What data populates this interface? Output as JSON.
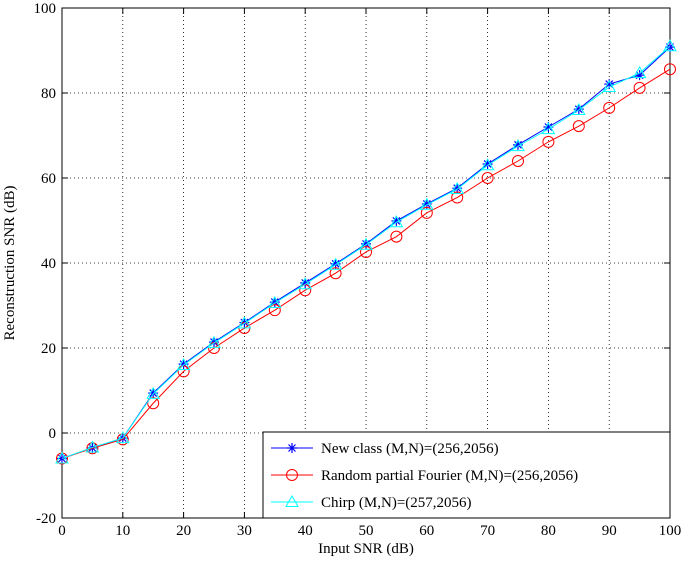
{
  "chart_data": {
    "type": "line",
    "xlabel": "Input SNR (dB)",
    "ylabel": "Reconstruction SNR (dB)",
    "x": [
      0,
      5,
      10,
      15,
      20,
      25,
      30,
      35,
      40,
      45,
      50,
      55,
      60,
      65,
      70,
      75,
      80,
      85,
      90,
      95,
      100
    ],
    "series": [
      {
        "name": "New class (M,N)=(256,2056)",
        "color": "#0000ff",
        "marker": "star",
        "values": [
          -6,
          -3.5,
          -1.2,
          9.4,
          16.2,
          21.4,
          26,
          30.8,
          35.3,
          39.8,
          44.5,
          49.9,
          53.9,
          57.6,
          63.3,
          67.8,
          72,
          76.2,
          82.1,
          84.2,
          90.8
        ]
      },
      {
        "name": "Random partial Fourier (M,N)=(256,2056)",
        "color": "#ff0000",
        "marker": "circle",
        "values": [
          -6,
          -3.6,
          -1.5,
          7,
          14.5,
          20,
          24.7,
          28.9,
          33.6,
          37.6,
          42.6,
          46.2,
          51.8,
          55.4,
          60,
          64,
          68.5,
          72.2,
          76.5,
          81.2,
          85.6
        ]
      },
      {
        "name": "Chirp (M,N)=(257,2056)",
        "color": "#00ffff",
        "marker": "triangle",
        "values": [
          -6,
          -3.4,
          -1.2,
          9.2,
          16,
          21.2,
          25.8,
          30.6,
          35,
          39.6,
          44.3,
          49.6,
          53.7,
          57.4,
          63,
          67.5,
          71.5,
          76,
          81.4,
          84.7,
          91
        ]
      }
    ],
    "xlim": [
      0,
      100
    ],
    "xticks": [
      0,
      10,
      20,
      30,
      40,
      50,
      60,
      70,
      80,
      90,
      100
    ],
    "ylim": [
      -20,
      100
    ],
    "yticks": [
      -20,
      0,
      20,
      40,
      60,
      80,
      100
    ],
    "grid": true,
    "legend": "lower right"
  }
}
